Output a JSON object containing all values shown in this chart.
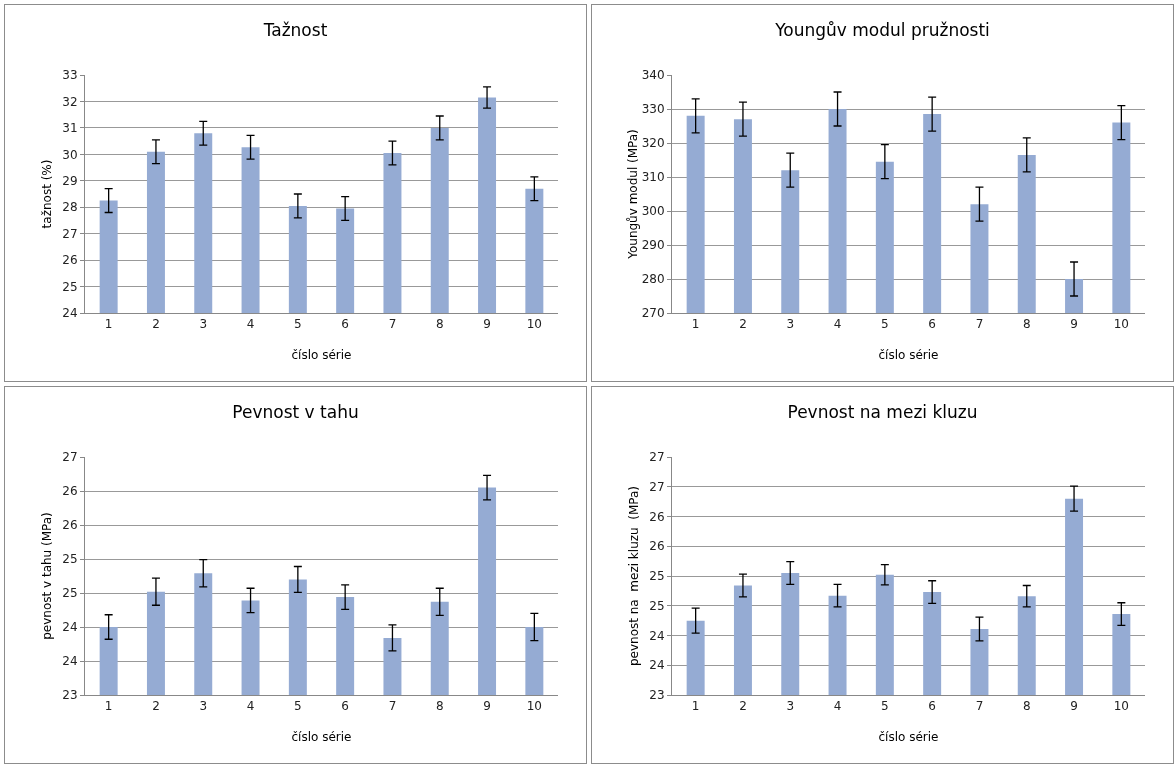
{
  "chart_data": [
    {
      "type": "bar",
      "title": "Tažnost",
      "xlabel": "číslo série",
      "ylabel": "tažnost (%)",
      "categories": [
        "1",
        "2",
        "3",
        "4",
        "5",
        "6",
        "7",
        "8",
        "9",
        "10"
      ],
      "color": "#95abd3",
      "grid": "y",
      "values": [
        28.25,
        30.1,
        30.8,
        30.27,
        28.05,
        27.95,
        30.05,
        31.0,
        32.15,
        28.7
      ],
      "errors": [
        0.45,
        0.45,
        0.45,
        0.45,
        0.45,
        0.45,
        0.45,
        0.45,
        0.4,
        0.45
      ],
      "ylim": [
        24,
        33
      ],
      "yticks": [
        24,
        25,
        26,
        27,
        28,
        29,
        30,
        31,
        32,
        33
      ]
    },
    {
      "type": "bar",
      "title": "Youngův modul pružnosti",
      "xlabel": "číslo série",
      "ylabel": "Youngův modul (MPa)",
      "categories": [
        "1",
        "2",
        "3",
        "4",
        "5",
        "6",
        "7",
        "8",
        "9",
        "10"
      ],
      "color": "#95abd3",
      "grid": "y",
      "values": [
        328,
        327,
        312,
        330,
        314.5,
        328.5,
        302,
        316.5,
        280,
        326
      ],
      "errors": [
        5,
        5,
        5,
        5,
        5,
        5,
        5,
        5,
        5,
        5
      ],
      "ylim": [
        270,
        340
      ],
      "yticks": [
        270,
        280,
        290,
        300,
        310,
        320,
        330,
        340
      ]
    },
    {
      "type": "bar",
      "title": "Pevnost v tahu",
      "xlabel": "číslo série",
      "ylabel": "pevnost v tahu (MPa)",
      "categories": [
        "1",
        "2",
        "3",
        "4",
        "5",
        "6",
        "7",
        "8",
        "9",
        "10"
      ],
      "color": "#95abd3",
      "grid": "y",
      "values": [
        24.0,
        24.52,
        24.79,
        24.39,
        24.7,
        24.44,
        23.84,
        24.37,
        26.05,
        24.0
      ],
      "errors": [
        0.18,
        0.2,
        0.2,
        0.18,
        0.19,
        0.18,
        0.19,
        0.2,
        0.18,
        0.2
      ],
      "ylim": [
        23,
        26.5
      ],
      "yticks": [
        23,
        {
          "value": 23.5,
          "label": "24"
        },
        24,
        {
          "value": 24.5,
          "label": "25"
        },
        25,
        {
          "value": 25.5,
          "label": "26"
        },
        26,
        {
          "value": 26.5,
          "label": "27"
        }
      ]
    },
    {
      "type": "bar",
      "title": "Pevnost na mezi kluzu",
      "xlabel": "číslo série",
      "ylabel": "pevnost na  mezi kluzu  (MPa)",
      "categories": [
        "1",
        "2",
        "3",
        "4",
        "5",
        "6",
        "7",
        "8",
        "9",
        "10"
      ],
      "color": "#95abd3",
      "grid": "y",
      "values": [
        24.25,
        24.84,
        25.05,
        24.67,
        25.02,
        24.73,
        24.11,
        24.66,
        26.3,
        24.36
      ],
      "errors": [
        0.21,
        0.19,
        0.19,
        0.19,
        0.17,
        0.19,
        0.2,
        0.18,
        0.21,
        0.19
      ],
      "ylim": [
        23,
        27
      ],
      "yticks": [
        23,
        {
          "value": 23.5,
          "label": "24"
        },
        24,
        {
          "value": 24.5,
          "label": "25"
        },
        25,
        {
          "value": 25.5,
          "label": "26"
        },
        26,
        {
          "value": 26.5,
          "label": "27"
        },
        27
      ]
    }
  ]
}
